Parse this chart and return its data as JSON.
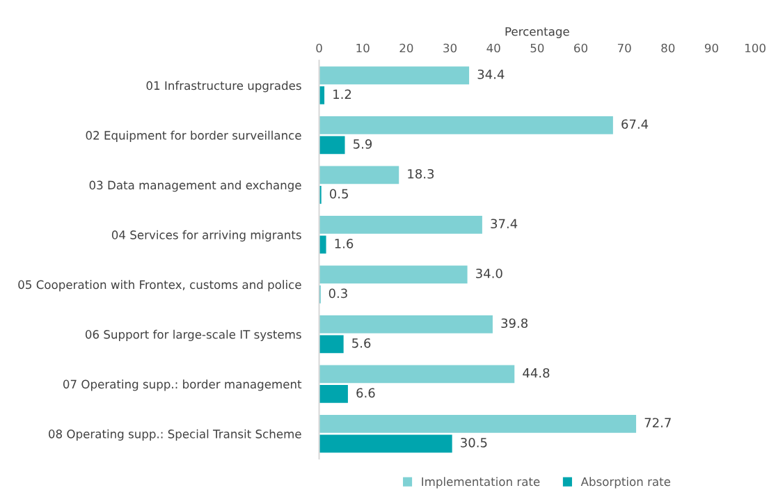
{
  "chart_data": {
    "type": "bar",
    "orientation": "horizontal",
    "xlabel": "Percentage",
    "categories": [
      "01 Infrastructure upgrades",
      "02 Equipment for border surveillance",
      "03 Data management and exchange",
      "04 Services for arriving migrants",
      "05 Cooperation with Frontex, customs and police",
      "06 Support for large-scale IT systems",
      "07 Operating supp.: border management",
      "08 Operating supp.: Special Transit Scheme"
    ],
    "series": [
      {
        "name": "Implementation rate",
        "color": "#7fd1d4",
        "values": [
          34.4,
          67.4,
          18.3,
          37.4,
          34.0,
          39.8,
          44.8,
          72.7
        ],
        "value_labels": [
          "34.4",
          "67.4",
          "18.3",
          "37.4",
          "34.0",
          "39.8",
          "44.8",
          "72.7"
        ]
      },
      {
        "name": "Absorption rate",
        "color": "#00a5ae",
        "values": [
          1.2,
          5.9,
          0.5,
          1.6,
          0.3,
          5.6,
          6.6,
          30.5
        ],
        "value_labels": [
          "1.2",
          "5.9",
          "0.5",
          "1.6",
          "0.3",
          "5.6",
          "6.6",
          "30.5"
        ]
      }
    ],
    "xlim": [
      0,
      100
    ],
    "xticks": [
      0,
      10,
      20,
      30,
      40,
      50,
      60,
      70,
      80,
      90,
      100
    ],
    "grid": false,
    "legend": "bottom"
  }
}
